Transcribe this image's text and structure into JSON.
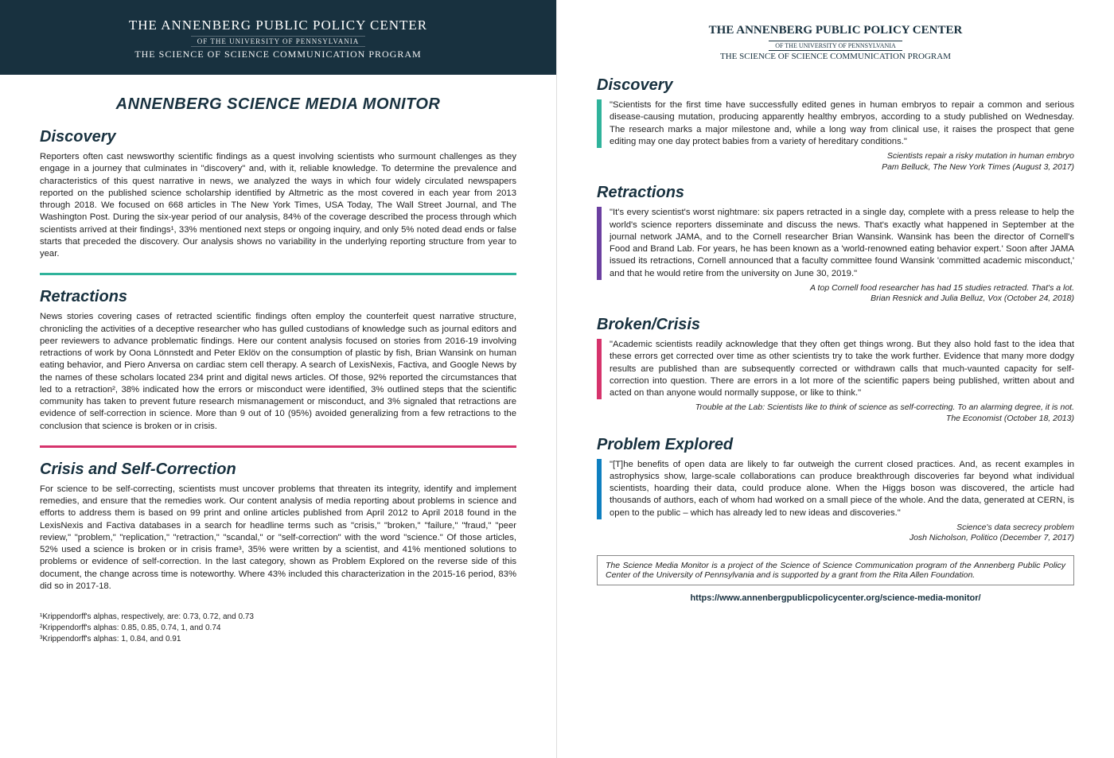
{
  "colors": {
    "banner_bg": "#18313f",
    "text_dark": "#18313f",
    "teal": "#2fb39b",
    "magenta": "#d6336c",
    "purple": "#6b3fa0",
    "blue": "#0e7fc0"
  },
  "header": {
    "org": "THE ANNENBERG PUBLIC POLICY CENTER",
    "sub": "OF THE UNIVERSITY OF PENNSYLVANIA",
    "prog": "THE SCIENCE OF SCIENCE COMMUNICATION PROGRAM"
  },
  "left": {
    "title": "ANNENBERG SCIENCE MEDIA MONITOR",
    "sections": [
      {
        "heading": "Discovery",
        "divider_color": "#2fb39b",
        "body": "Reporters often cast newsworthy scientific findings as a quest involving scientists who surmount challenges as they engage in a journey that culminates in \"discovery\" and, with it, reliable knowledge. To determine the prevalence and characteristics of this quest narrative in news, we analyzed the ways in which four widely circulated newspapers reported on the published science scholarship identified by Altmetric as the most covered in each year from 2013 through 2018. We focused on 668 articles in The New York Times, USA Today, The Wall Street Journal, and The Washington Post. During the six-year period of our analysis, 84% of the coverage described the process through which scientists arrived at their findings¹, 33% mentioned next steps or ongoing inquiry, and only 5% noted dead ends or false starts that preceded the discovery. Our analysis shows no variability in the underlying reporting structure from year to year."
      },
      {
        "heading": "Retractions",
        "divider_color": "#d6336c",
        "body": "News stories covering cases of retracted scientific findings often employ the counterfeit quest narrative structure, chronicling the activities of a deceptive researcher who has gulled custodians of knowledge such as journal editors and peer reviewers to advance problematic findings. Here our content analysis focused on stories from 2016-19 involving retractions of work by Oona Lönnstedt and Peter Eklöv on the consumption of plastic by fish, Brian Wansink on human eating behavior, and Piero Anversa on cardiac stem cell therapy. A search of LexisNexis, Factiva, and Google News by the names of these scholars located 234 print and digital news articles. Of those, 92% reported the circumstances that led to a retraction², 38% indicated how the errors or misconduct were identified, 3% outlined steps that the scientific community has taken to prevent future research mismanagement or misconduct, and 3% signaled that retractions are evidence of self-correction in science. More than 9 out of 10 (95%) avoided generalizing from a few retractions to the conclusion that science is broken or in crisis."
      },
      {
        "heading": "Crisis and Self-Correction",
        "divider_color": null,
        "body": "For science to be self-correcting, scientists must uncover problems that threaten its integrity, identify and implement remedies, and ensure that the remedies work. Our content analysis of media reporting about problems in science and efforts to address them is based on 99 print and online articles published from April 2012 to April 2018 found in the LexisNexis and Factiva databases in a search for headline terms such as \"crisis,\" \"broken,\" \"failure,\" \"fraud,\" \"peer review,\" \"problem,\" \"replication,\" \"retraction,\" \"scandal,\" or \"self-correction\" with the word \"science.\" Of those articles, 52% used a science is broken or in crisis frame³, 35% were written by a scientist, and 41% mentioned solutions to problems or evidence of self-correction. In the last category, shown as Problem Explored on the reverse side of this document, the change across time is noteworthy. Where 43% included this characterization in the 2015-16 period, 83% did so in 2017-18."
      }
    ],
    "footnotes": [
      "¹Krippendorff's alphas, respectively, are: 0.73, 0.72, and 0.73",
      "²Krippendorff's alphas: 0.85, 0.85, 0.74, 1, and 0.74",
      "³Krippendorff's alphas: 1, 0.84, and 0.91"
    ]
  },
  "right": {
    "quotes": [
      {
        "heading": "Discovery",
        "bar_color": "#2fb39b",
        "text": "\"Scientists for the first time have successfully edited genes in human embryos to repair a common and serious disease-causing mutation, producing apparently healthy embryos, according to a study published on Wednesday. The research marks a major milestone and, while a long way from clinical use, it raises the prospect that gene editing may one day protect babies from a variety of hereditary conditions.\"",
        "attr1": "Scientists repair a risky mutation in human embryo",
        "attr2": "Pam Belluck, The New York Times (August 3, 2017)"
      },
      {
        "heading": "Retractions",
        "bar_color": "#6b3fa0",
        "text": "\"It's every scientist's worst nightmare: six papers retracted in a single day, complete with a press release to help the world's science reporters disseminate and discuss the news. That's exactly what happened in September at the journal network JAMA, and to the Cornell researcher Brian Wansink. Wansink has been the director of Cornell's Food and Brand Lab. For years, he has been known as a 'world-renowned eating behavior expert.' Soon after JAMA issued its retractions, Cornell announced that a faculty committee found Wansink 'committed academic misconduct,' and that he would retire from the university on June 30, 2019.\"",
        "attr1": "A top Cornell food researcher has had 15 studies retracted. That's a lot.",
        "attr2": "Brian Resnick and Julia Belluz, Vox (October 24, 2018)"
      },
      {
        "heading": "Broken/Crisis",
        "bar_color": "#d6336c",
        "text": "\"Academic scientists readily acknowledge that they often get things wrong. But they also hold fast to the idea that these errors get corrected over time as other scientists try to take the work further. Evidence that many more dodgy results are published than are subsequently corrected or withdrawn calls that much-vaunted capacity for self-correction into question. There are errors in a lot more of the scientific papers being published, written about and acted on than anyone would normally suppose, or like to think.\"",
        "attr1": "Trouble at the Lab: Scientists like to think of science as self-correcting. To an alarming degree, it is not.",
        "attr2": "The Economist (October 18, 2013)"
      },
      {
        "heading": "Problem Explored",
        "bar_color": "#0e7fc0",
        "text": "\"[T]he benefits of open data are likely to far outweigh the current closed practices. And, as recent examples in astrophysics show, large-scale collaborations can produce breakthrough discoveries far beyond what individual scientists, hoarding their data, could produce alone. When the Higgs boson was discovered, the article had thousands of authors, each of whom had worked on a small piece of the whole. And the data, generated at CERN, is open to the public – which has already led to new ideas and discoveries.\"",
        "attr1": "Science's data secrecy problem",
        "attr2": "Josh Nicholson, Politico (December 7, 2017)"
      }
    ],
    "footer_box": "The Science Media Monitor is a project of the Science of Science Communication program of the Annenberg Public Policy Center of the University of Pennsylvania and is supported by a grant from the Rita Allen Foundation.",
    "url": "https://www.annenbergpublicpolicycenter.org/science-media-monitor/"
  }
}
